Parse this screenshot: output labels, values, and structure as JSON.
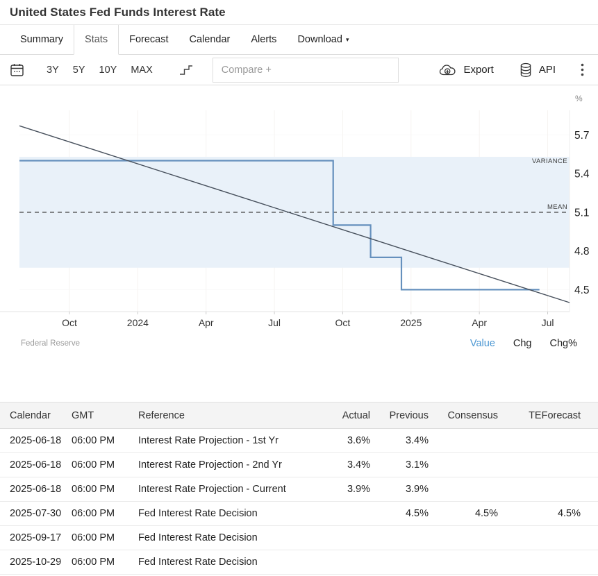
{
  "page": {
    "title": "United States Fed Funds Interest Rate"
  },
  "tabs": [
    {
      "label": "Summary",
      "active": false,
      "caret": false
    },
    {
      "label": "Stats",
      "active": true,
      "caret": false
    },
    {
      "label": "Forecast",
      "active": false,
      "caret": false
    },
    {
      "label": "Calendar",
      "active": false,
      "caret": false
    },
    {
      "label": "Alerts",
      "active": false,
      "caret": false
    },
    {
      "label": "Download",
      "active": false,
      "caret": true
    }
  ],
  "toolbar": {
    "calendar_icon": "calendar-icon",
    "ranges": [
      "3Y",
      "5Y",
      "10Y",
      "MAX"
    ],
    "chart_type_icon": "step-line-icon",
    "compare_placeholder": "Compare +",
    "export_label": "Export",
    "export_icon": "cloud-download-icon",
    "api_label": "API",
    "api_icon": "database-icon",
    "menu_icon": "kebab-menu-icon"
  },
  "chart_data": {
    "type": "line",
    "title": "United States Fed Funds Interest Rate",
    "unit": "%",
    "source": "Federal Reserve",
    "x_domain": [
      2023.567,
      2025.58
    ],
    "y_domain": [
      4.33,
      5.89
    ],
    "x_ticks": [
      {
        "t": 2023.75,
        "label": "Oct"
      },
      {
        "t": 2024.0,
        "label": "2024"
      },
      {
        "t": 2024.25,
        "label": "Apr"
      },
      {
        "t": 2024.5,
        "label": "Jul"
      },
      {
        "t": 2024.75,
        "label": "Oct"
      },
      {
        "t": 2025.0,
        "label": "2025"
      },
      {
        "t": 2025.25,
        "label": "Apr"
      },
      {
        "t": 2025.5,
        "label": "Jul"
      }
    ],
    "y_ticks": [
      5.7,
      5.4,
      5.1,
      4.8,
      4.5
    ],
    "series": [
      {
        "name": "Fed Funds Interest Rate",
        "style": "step",
        "color": "#6590bd",
        "width": 2.2,
        "points": [
          {
            "t": 2023.567,
            "v": 5.5
          },
          {
            "t": 2024.715,
            "v": 5.5
          },
          {
            "t": 2024.715,
            "v": 5.0
          },
          {
            "t": 2024.852,
            "v": 5.0
          },
          {
            "t": 2024.852,
            "v": 4.75
          },
          {
            "t": 2024.965,
            "v": 4.75
          },
          {
            "t": 2024.965,
            "v": 4.5
          },
          {
            "t": 2025.47,
            "v": 4.5
          }
        ]
      },
      {
        "name": "Trend",
        "style": "straight",
        "color": "#47505c",
        "width": 1.4,
        "points": [
          {
            "t": 2023.567,
            "v": 5.77
          },
          {
            "t": 2025.58,
            "v": 4.4
          }
        ]
      }
    ],
    "variance_band": {
      "label": "VARIANCE",
      "top": 5.53,
      "bottom": 4.67,
      "fill": "#e9f1f9"
    },
    "mean_line": {
      "label": "MEAN",
      "value": 5.1,
      "color": "#333333"
    },
    "grid": true,
    "legend_position": "none"
  },
  "chart_footer": {
    "source": "Federal Reserve",
    "modes": [
      {
        "label": "Value",
        "active": true
      },
      {
        "label": "Chg",
        "active": false
      },
      {
        "label": "Chg%",
        "active": false
      }
    ]
  },
  "table": {
    "headers": [
      "Calendar",
      "GMT",
      "Reference",
      "Actual",
      "Previous",
      "Consensus",
      "TEForecast"
    ],
    "rows": [
      [
        "2025-06-18",
        "06:00 PM",
        "Interest Rate Projection - 1st Yr",
        "3.6%",
        "3.4%",
        "",
        ""
      ],
      [
        "2025-06-18",
        "06:00 PM",
        "Interest Rate Projection - 2nd Yr",
        "3.4%",
        "3.1%",
        "",
        ""
      ],
      [
        "2025-06-18",
        "06:00 PM",
        "Interest Rate Projection - Current",
        "3.9%",
        "3.9%",
        "",
        ""
      ],
      [
        "2025-07-30",
        "06:00 PM",
        "Fed Interest Rate Decision",
        "",
        "4.5%",
        "4.5%",
        "4.5%"
      ],
      [
        "2025-09-17",
        "06:00 PM",
        "Fed Interest Rate Decision",
        "",
        "",
        "",
        ""
      ],
      [
        "2025-10-29",
        "06:00 PM",
        "Fed Interest Rate Decision",
        "",
        "",
        "",
        ""
      ]
    ]
  },
  "colors": {
    "accent_blue": "#4a96d2",
    "step_line": "#6590bd",
    "trend_line": "#47505c",
    "band_fill": "#e9f1f9",
    "table_header_bg": "#f4f4f4"
  }
}
